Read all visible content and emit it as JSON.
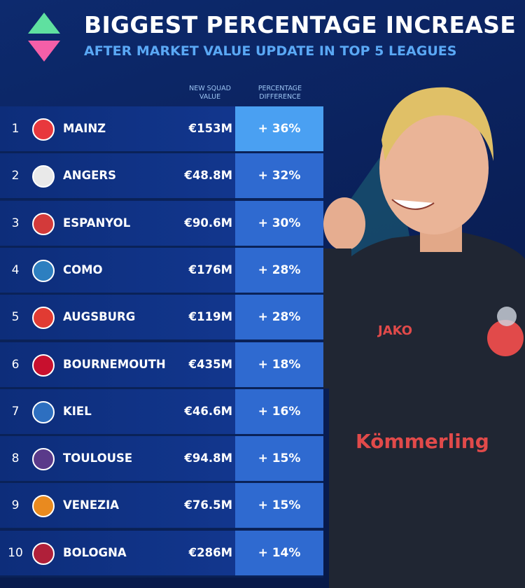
{
  "header": {
    "title": "BIGGEST PERCENTAGE INCREASE",
    "subtitle": "AFTER MARKET VALUE UPDATE IN TOP 5 LEAGUES"
  },
  "table": {
    "columns": [
      "NEW SQUAD VALUE",
      "PERCENTAGE DIFFERENCE"
    ],
    "rows": [
      [
        "1",
        "MAINZ",
        "€153M",
        "+ 36%"
      ],
      [
        "2",
        "ANGERS",
        "€48.8M",
        "+ 32%"
      ],
      [
        "3",
        "ESPANYOL",
        "€90.6M",
        "+ 30%"
      ],
      [
        "4",
        "COMO",
        "€176M",
        "+ 28%"
      ],
      [
        "5",
        "AUGSBURG",
        "€119M",
        "+ 28%"
      ],
      [
        "6",
        "BOURNEMOUTH",
        "€435M",
        "+ 18%"
      ],
      [
        "7",
        "KIEL",
        "€46.6M",
        "+ 16%"
      ],
      [
        "8",
        "TOULOUSE",
        "€94.8M",
        "+ 15%"
      ],
      [
        "9",
        "VENEZIA",
        "€76.5M",
        "+ 15%"
      ],
      [
        "10",
        "BOLOGNA",
        "€286M",
        "+ 14%"
      ]
    ]
  },
  "photo": {
    "shirt_brand": "JAKO",
    "sponsor": "Kömmerling"
  }
}
